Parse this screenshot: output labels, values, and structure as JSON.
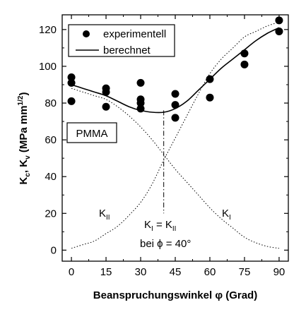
{
  "chart_data": {
    "type": "scatter",
    "xlabel": "Beanspruchungswinkel φ (Grad)",
    "ylabel": "Kc, Kv (MPa mm1/2)",
    "xlim": [
      -4,
      94
    ],
    "ylim": [
      -6,
      128
    ],
    "xticks": [
      0,
      15,
      30,
      45,
      60,
      75,
      90
    ],
    "yticks": [
      0,
      20,
      40,
      60,
      80,
      100,
      120
    ],
    "grid": false,
    "legend": {
      "placement": "top-left",
      "entries": [
        "experimentell",
        "berechnet"
      ]
    },
    "series": [
      {
        "name": "experimentell",
        "kind": "scatter",
        "x": [
          0,
          0,
          0,
          15,
          15,
          15,
          30,
          30,
          30,
          30,
          45,
          45,
          45,
          60,
          60,
          75,
          75,
          90,
          90
        ],
        "y": [
          94,
          91,
          81,
          88,
          86,
          78,
          91,
          82,
          80,
          77,
          85,
          79,
          72,
          93,
          83,
          107,
          101,
          125,
          119
        ]
      },
      {
        "name": "berechnet",
        "kind": "line",
        "x": [
          0,
          5,
          10,
          15,
          20,
          25,
          30,
          35,
          40,
          45,
          50,
          55,
          60,
          65,
          70,
          75,
          80,
          85,
          90
        ],
        "y": [
          90,
          88,
          86,
          84,
          81,
          78,
          76,
          75,
          75,
          77,
          81,
          87,
          93,
          99,
          104,
          109,
          114,
          118,
          121
        ]
      },
      {
        "name": "KII",
        "kind": "dotted-line",
        "x": [
          0,
          5,
          10,
          15,
          20,
          25,
          30,
          35,
          40,
          45,
          50,
          55,
          60,
          65,
          70,
          75,
          80,
          85,
          90
        ],
        "y": [
          1,
          3,
          5,
          9,
          13,
          19,
          26,
          36,
          49,
          61,
          73,
          85,
          96,
          104,
          110,
          116,
          119,
          122,
          124
        ]
      },
      {
        "name": "KI",
        "kind": "dotted-line",
        "x": [
          0,
          5,
          10,
          15,
          20,
          25,
          30,
          35,
          40,
          45,
          50,
          55,
          60,
          65,
          70,
          75,
          80,
          85,
          90
        ],
        "y": [
          88,
          86,
          84,
          82,
          78,
          73,
          67,
          60,
          52,
          44,
          37,
          30,
          23,
          17,
          12,
          7,
          4,
          2,
          1
        ]
      }
    ],
    "annotations": {
      "material": "PMMA",
      "k2_label": "KII",
      "k1_label": "KI",
      "equality": "KI = KII",
      "angle": "bei ϕ = 40°",
      "crossing_x": 40
    }
  }
}
